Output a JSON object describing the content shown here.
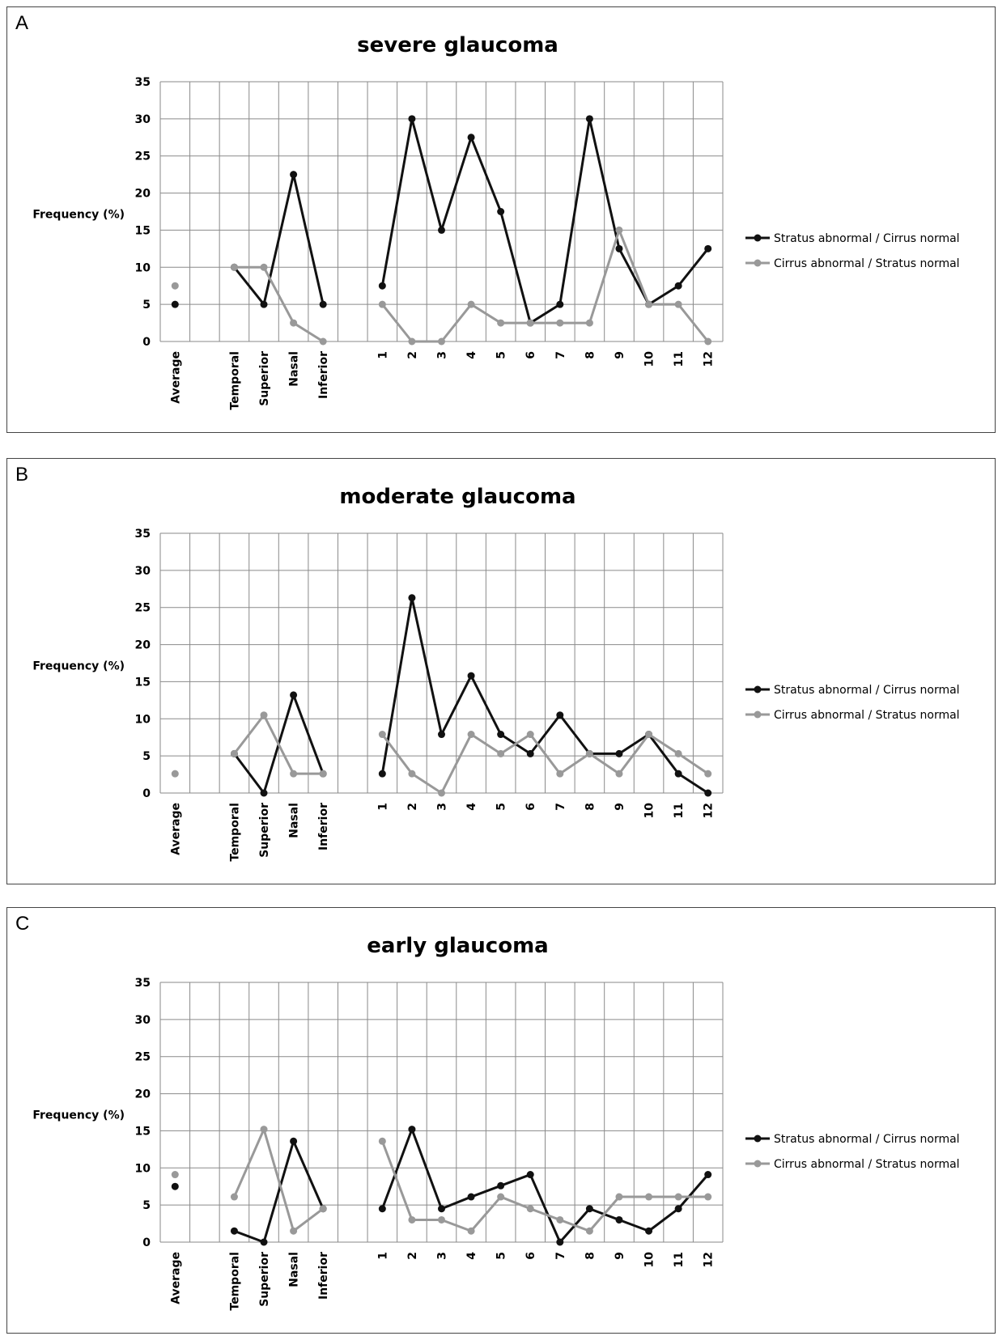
{
  "chart_data": [
    {
      "panel": "A",
      "type": "line",
      "title": "severe glaucoma",
      "ylabel": "Frequency (%)",
      "ylim": [
        0,
        35
      ],
      "yticks": [
        0,
        5,
        10,
        15,
        20,
        25,
        30,
        35
      ],
      "categories": [
        "Average",
        "",
        "Temporal",
        "Superior",
        "Nasal",
        "Inferior",
        "",
        "1",
        "2",
        "3",
        "4",
        "5",
        "6",
        "7",
        "8",
        "9",
        "10",
        "11",
        "12"
      ],
      "grid": true,
      "legend": "right",
      "series": [
        {
          "name": "Stratus abnormal / Cirrus normal",
          "color": "#111111",
          "values": [
            5,
            null,
            10,
            5,
            22.5,
            5,
            null,
            7.5,
            30,
            15,
            27.5,
            17.5,
            2.5,
            5,
            30,
            12.5,
            5,
            7.5,
            12.5
          ]
        },
        {
          "name": "Cirrus abnormal / Stratus normal",
          "color": "#999999",
          "values": [
            7.5,
            null,
            10,
            10,
            2.5,
            0,
            null,
            5,
            0,
            0,
            5,
            2.5,
            2.5,
            2.5,
            2.5,
            15,
            5,
            5,
            0
          ]
        }
      ]
    },
    {
      "panel": "B",
      "type": "line",
      "title": "moderate glaucoma",
      "ylabel": "Frequency (%)",
      "ylim": [
        0,
        35
      ],
      "yticks": [
        0,
        5,
        10,
        15,
        20,
        25,
        30,
        35
      ],
      "categories": [
        "Average",
        "",
        "Temporal",
        "Superior",
        "Nasal",
        "Inferior",
        "",
        "1",
        "2",
        "3",
        "4",
        "5",
        "6",
        "7",
        "8",
        "9",
        "10",
        "11",
        "12"
      ],
      "grid": true,
      "legend": "right",
      "series": [
        {
          "name": "Stratus abnormal / Cirrus normal",
          "color": "#111111",
          "values": [
            null,
            null,
            5.3,
            0,
            13.2,
            2.6,
            null,
            2.6,
            26.3,
            7.9,
            15.8,
            7.9,
            5.3,
            10.5,
            5.3,
            5.3,
            7.9,
            2.6,
            0
          ]
        },
        {
          "name": "Cirrus abnormal / Stratus normal",
          "color": "#999999",
          "values": [
            2.6,
            null,
            5.3,
            10.5,
            2.6,
            2.6,
            null,
            7.9,
            2.6,
            0,
            7.9,
            5.3,
            7.9,
            2.6,
            5.3,
            2.6,
            7.9,
            5.3,
            2.6
          ]
        }
      ]
    },
    {
      "panel": "C",
      "type": "line",
      "title": "early glaucoma",
      "ylabel": "Frequency (%)",
      "ylim": [
        0,
        35
      ],
      "yticks": [
        0,
        5,
        10,
        15,
        20,
        25,
        30,
        35
      ],
      "categories": [
        "Average",
        "",
        "Temporal",
        "Superior",
        "Nasal",
        "Inferior",
        "",
        "1",
        "2",
        "3",
        "4",
        "5",
        "6",
        "7",
        "8",
        "9",
        "10",
        "11",
        "12"
      ],
      "grid": true,
      "legend": "right",
      "series": [
        {
          "name": "Stratus abnormal / Cirrus normal",
          "color": "#111111",
          "values": [
            7.5,
            null,
            1.5,
            0,
            13.6,
            4.5,
            null,
            4.5,
            15.2,
            4.5,
            6.1,
            7.6,
            9.1,
            0,
            4.5,
            3,
            1.5,
            4.5,
            9.1
          ]
        },
        {
          "name": "Cirrus abnormal / Stratus normal",
          "color": "#999999",
          "values": [
            9.1,
            null,
            6.1,
            15.2,
            1.5,
            4.5,
            null,
            13.6,
            3,
            3,
            1.5,
            6.1,
            4.5,
            3,
            1.5,
            6.1,
            6.1,
            6.1,
            6.1
          ]
        }
      ]
    }
  ]
}
